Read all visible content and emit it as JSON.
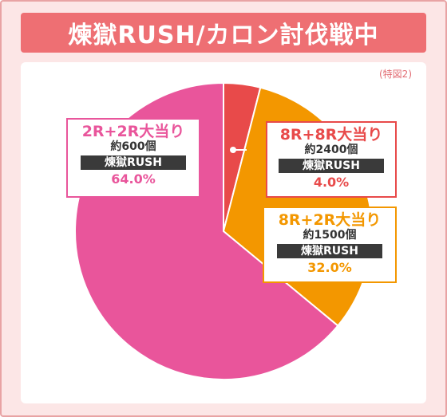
{
  "title": "煉獄RUSH/カロン討伐戦中",
  "note": "(特図2)",
  "colors": {
    "frame_bg": "#fce6e6",
    "frame_border": "#e8a3a4",
    "title_bg": "#ee6f73",
    "pink": "#e9559b",
    "red": "#e84a4a",
    "orange": "#f39700",
    "rush_bg": "#3a3a3a"
  },
  "chart_data": {
    "type": "pie",
    "title": "煉獄RUSH/カロン討伐戦中",
    "slices": [
      {
        "label": "8R+8R大当り",
        "prize": "約2400個",
        "mode": "煉獄RUSH",
        "value": 4.0,
        "value_label": "4.0%",
        "color": "#e84a4a"
      },
      {
        "label": "8R+2R大当り",
        "prize": "約1500個",
        "mode": "煉獄RUSH",
        "value": 32.0,
        "value_label": "32.0%",
        "color": "#f39700"
      },
      {
        "label": "2R+2R大当り",
        "prize": "約600個",
        "mode": "煉獄RUSH",
        "value": 64.0,
        "value_label": "64.0%",
        "color": "#e9559b"
      }
    ]
  }
}
